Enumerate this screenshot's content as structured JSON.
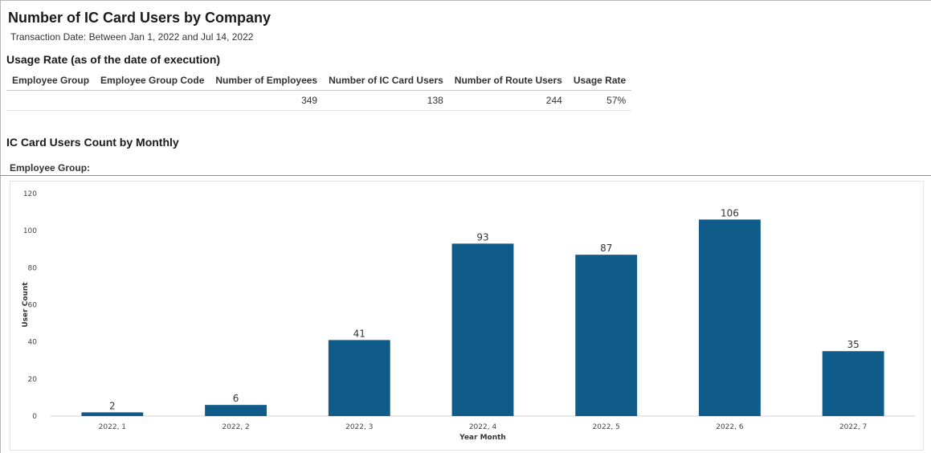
{
  "report": {
    "title": "Number of IC Card Users by Company",
    "subtitle": "Transaction Date: Between Jan 1, 2022 and Jul 14, 2022"
  },
  "usage": {
    "title": "Usage Rate (as of the date of execution)",
    "columns": [
      "Employee Group",
      "Employee Group Code",
      "Number of Employees",
      "Number of IC Card Users",
      "Number of Route Users",
      "Usage Rate"
    ],
    "row": [
      "",
      "",
      "349",
      "138",
      "244",
      "57%"
    ]
  },
  "monthly": {
    "title": "IC Card Users Count by Monthly",
    "group_label": "Employee Group:"
  },
  "chart_data": {
    "type": "bar",
    "categories": [
      "2022, 1",
      "2022, 2",
      "2022, 3",
      "2022, 4",
      "2022, 5",
      "2022, 6",
      "2022, 7"
    ],
    "values": [
      2,
      6,
      41,
      93,
      87,
      106,
      35
    ],
    "xlabel": "Year Month",
    "ylabel": "User Count",
    "ylim": [
      0,
      120
    ],
    "yticks": [
      0,
      20,
      40,
      60,
      80,
      100,
      120
    ],
    "grid": false,
    "bar_color": "#0f5c8a",
    "data_labels": true
  }
}
